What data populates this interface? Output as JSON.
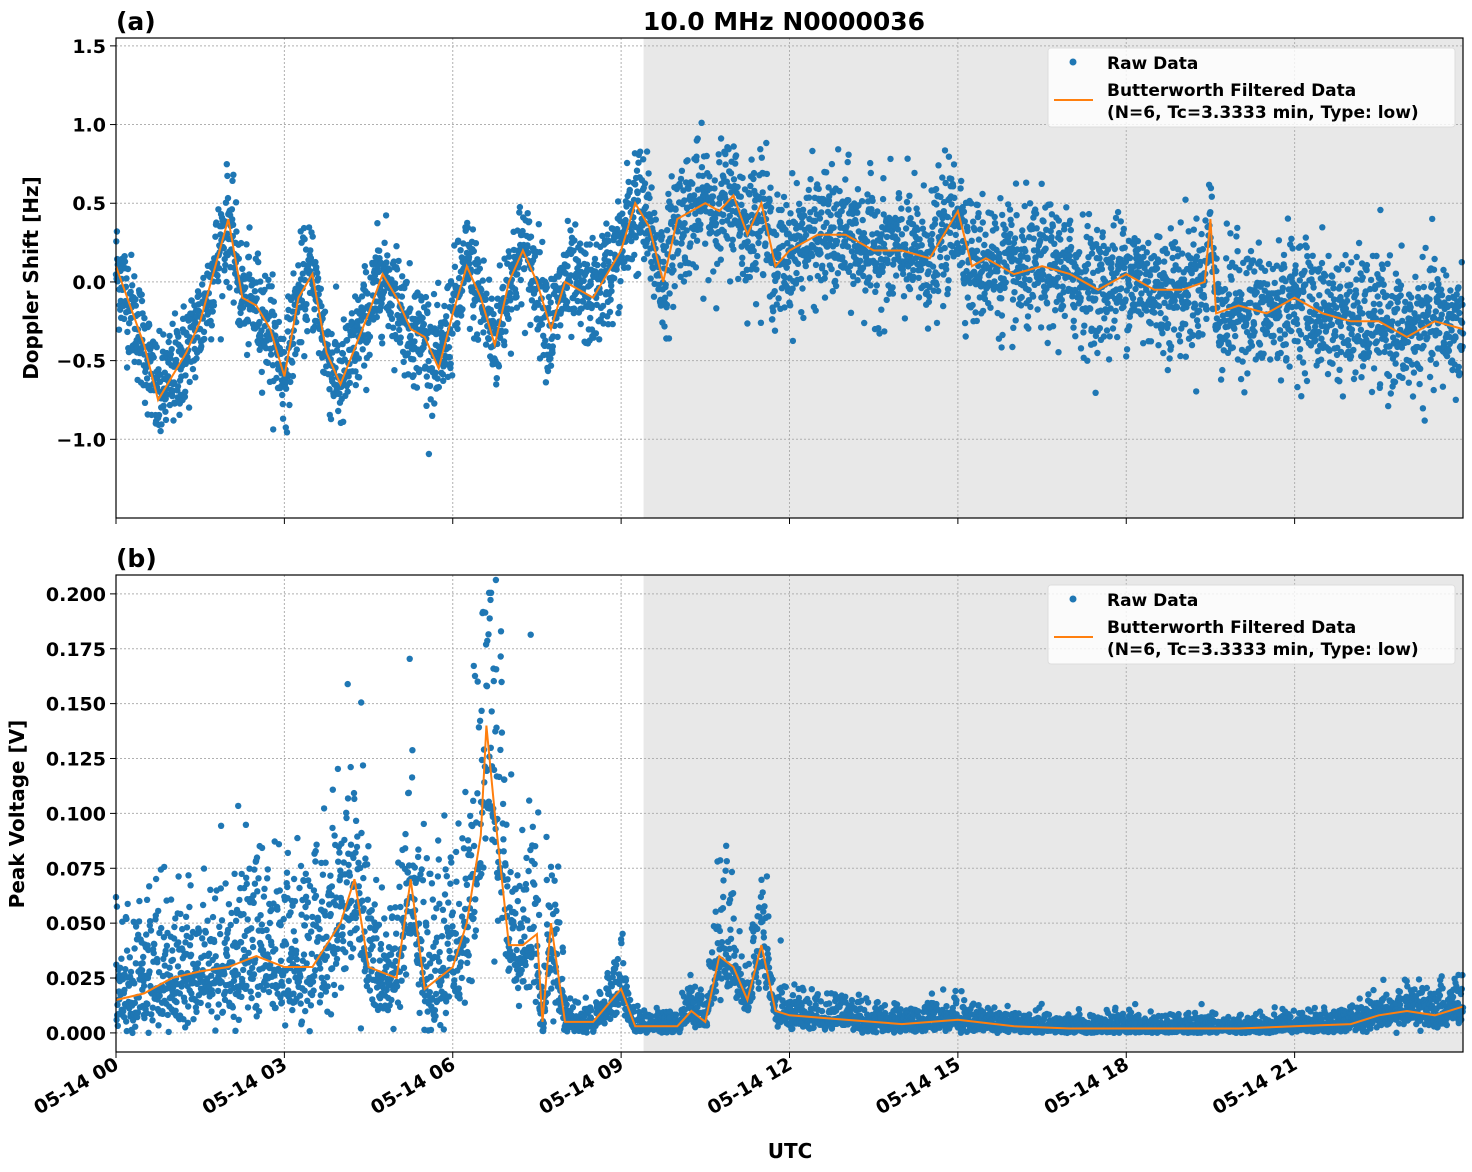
{
  "chart_data": [
    {
      "type": "scatter",
      "panel_label": "(a)",
      "title": "10.0 MHz N0000036",
      "xlabel": "",
      "ylabel": "Doppler Shift [Hz]",
      "xlim_hours": [
        0,
        24
      ],
      "ylim": [
        -1.5,
        1.55
      ],
      "yticks": [
        1.5,
        1.0,
        0.5,
        0.0,
        -0.5,
        -1.0
      ],
      "ytick_labels": [
        "1.5",
        "1.0",
        "0.5",
        "0.0",
        "−0.5",
        "−1.0"
      ],
      "grid": true,
      "legend_position": "top-right",
      "shaded_region_hours": [
        9.4,
        24
      ],
      "series": [
        {
          "name": "Raw Data",
          "kind": "points",
          "color": "#1f77b4"
        },
        {
          "name": "Butterworth Filtered Data",
          "name_line2": "(N=6, Tc=3.3333 min, Type: low)",
          "kind": "line",
          "color": "#ff7f0e",
          "x": [
            0,
            0.5,
            0.75,
            1,
            1.25,
            1.5,
            2,
            2.25,
            2.5,
            2.75,
            3,
            3.25,
            3.5,
            3.75,
            4,
            4.5,
            4.75,
            5,
            5.25,
            5.5,
            5.75,
            6,
            6.25,
            6.5,
            6.75,
            7,
            7.25,
            7.5,
            7.75,
            8,
            8.5,
            9,
            9.25,
            9.5,
            9.75,
            10,
            10.5,
            10.75,
            11,
            11.25,
            11.5,
            11.75,
            12,
            12.5,
            13,
            13.5,
            14,
            14.5,
            15,
            15.25,
            15.5,
            16,
            16.5,
            17,
            17.5,
            18,
            18.5,
            19,
            19.4,
            19.5,
            19.6,
            20,
            20.5,
            21,
            21.5,
            22,
            22.5,
            23,
            23.5,
            24
          ],
          "y": [
            0.1,
            -0.4,
            -0.75,
            -0.6,
            -0.45,
            -0.25,
            0.4,
            -0.1,
            -0.15,
            -0.3,
            -0.6,
            -0.1,
            0.05,
            -0.45,
            -0.65,
            -0.2,
            0.05,
            -0.1,
            -0.3,
            -0.35,
            -0.55,
            -0.2,
            0.1,
            -0.1,
            -0.4,
            0.0,
            0.2,
            0.0,
            -0.3,
            0.0,
            -0.1,
            0.2,
            0.5,
            0.35,
            0.0,
            0.4,
            0.5,
            0.45,
            0.55,
            0.3,
            0.5,
            0.1,
            0.2,
            0.3,
            0.3,
            0.2,
            0.2,
            0.15,
            0.45,
            0.1,
            0.15,
            0.05,
            0.1,
            0.05,
            -0.05,
            0.05,
            -0.05,
            -0.05,
            0.0,
            0.4,
            -0.2,
            -0.15,
            -0.2,
            -0.1,
            -0.2,
            -0.25,
            -0.25,
            -0.35,
            -0.25,
            -0.3
          ]
        }
      ]
    },
    {
      "type": "scatter",
      "panel_label": "(b)",
      "title": "",
      "xlabel": "UTC",
      "ylabel": "Peak Voltage [V]",
      "xlim_hours": [
        0,
        24
      ],
      "ylim": [
        -0.0087,
        0.2086
      ],
      "yticks": [
        0.2,
        0.175,
        0.15,
        0.125,
        0.1,
        0.075,
        0.05,
        0.025,
        0.0
      ],
      "ytick_labels": [
        "0.200",
        "0.175",
        "0.150",
        "0.125",
        "0.100",
        "0.075",
        "0.050",
        "0.025",
        "0.000"
      ],
      "xticks_hours": [
        0,
        3,
        6,
        9,
        12,
        15,
        18,
        21
      ],
      "xtick_labels": [
        "05-14 00",
        "05-14 03",
        "05-14 06",
        "05-14 09",
        "05-14 12",
        "05-14 15",
        "05-14 18",
        "05-14 21"
      ],
      "grid": true,
      "legend_position": "top-right",
      "shaded_region_hours": [
        9.4,
        24
      ],
      "series": [
        {
          "name": "Raw Data",
          "kind": "points",
          "color": "#1f77b4"
        },
        {
          "name": "Butterworth Filtered Data",
          "name_line2": "(N=6, Tc=3.3333 min, Type: low)",
          "kind": "line",
          "color": "#ff7f0e",
          "x": [
            0,
            0.5,
            1,
            1.5,
            2,
            2.5,
            3,
            3.5,
            4,
            4.25,
            4.5,
            5,
            5.25,
            5.5,
            6,
            6.25,
            6.5,
            6.6,
            6.75,
            7,
            7.25,
            7.5,
            7.6,
            7.75,
            8,
            8.5,
            9,
            9.25,
            10,
            10.25,
            10.5,
            10.75,
            11,
            11.25,
            11.5,
            11.75,
            12,
            13,
            14,
            15,
            16,
            17,
            18,
            19,
            20,
            21,
            22,
            22.5,
            23,
            23.5,
            24
          ],
          "y": [
            0.015,
            0.018,
            0.025,
            0.028,
            0.03,
            0.035,
            0.03,
            0.03,
            0.05,
            0.07,
            0.03,
            0.025,
            0.07,
            0.02,
            0.03,
            0.05,
            0.09,
            0.14,
            0.1,
            0.04,
            0.04,
            0.045,
            0.005,
            0.05,
            0.005,
            0.005,
            0.02,
            0.003,
            0.003,
            0.01,
            0.005,
            0.035,
            0.03,
            0.015,
            0.04,
            0.01,
            0.008,
            0.006,
            0.004,
            0.006,
            0.003,
            0.002,
            0.002,
            0.002,
            0.002,
            0.003,
            0.004,
            0.008,
            0.01,
            0.008,
            0.012
          ]
        }
      ]
    }
  ]
}
